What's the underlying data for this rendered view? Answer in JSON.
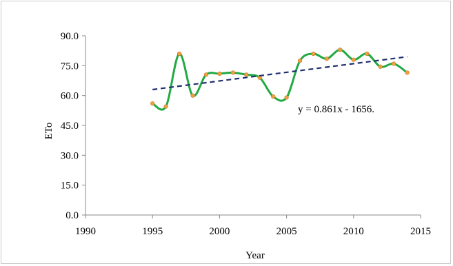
{
  "chart_data": {
    "type": "line",
    "title": "",
    "xlabel": "Year",
    "ylabel": "ETo",
    "xlim": [
      1990,
      2015
    ],
    "ylim": [
      0,
      90
    ],
    "x_ticks": [
      "1990",
      "1995",
      "2000",
      "2005",
      "2010",
      "2015"
    ],
    "y_ticks": [
      "0.0",
      "15.0",
      "30.0",
      "45.0",
      "60.0",
      "75.0",
      "90.0"
    ],
    "grid": false,
    "legend": "none",
    "series": [
      {
        "color": "#22aa44",
        "marker_color": "#f0a040",
        "smooth": true,
        "x": [
          1995,
          1996,
          1997,
          1998,
          1999,
          2000,
          2001,
          2002,
          2003,
          2004,
          2005,
          2006,
          2007,
          2008,
          2009,
          2010,
          2011,
          2012,
          2013,
          2014
        ],
        "y": [
          56.0,
          54.5,
          81.0,
          60.0,
          70.5,
          71.0,
          71.5,
          70.5,
          69.0,
          59.5,
          59.0,
          77.5,
          81.0,
          78.5,
          83.0,
          78.0,
          81.0,
          74.5,
          76.0,
          71.5
        ]
      }
    ],
    "trendline": {
      "color": "#1f2f6e",
      "style": "dashed",
      "x": [
        1995,
        2014
      ],
      "y": [
        63.0,
        79.5
      ]
    },
    "annotation": "y = 0.861x - 1656."
  }
}
